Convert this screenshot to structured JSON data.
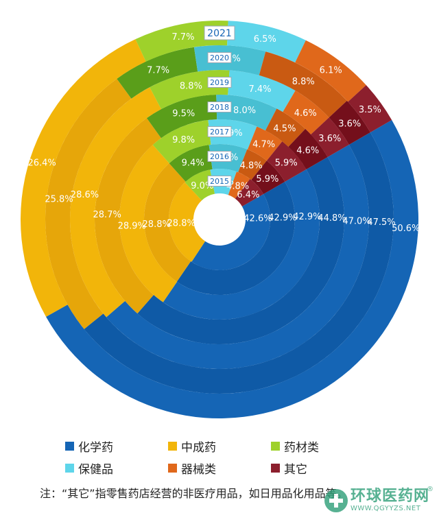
{
  "chart_data": {
    "type": "pie",
    "subtype": "concentric-rings",
    "start_angle_deg": -30,
    "years": [
      "2015",
      "2016",
      "2017",
      "2018",
      "2019",
      "2020",
      "2021"
    ],
    "categories": [
      "化学药",
      "中成药",
      "药材类",
      "保健品",
      "器械类",
      "其它"
    ],
    "colors": [
      "#1565b5",
      "#f2b50a",
      "#9ed12b",
      "#5ed5ea",
      "#e0681b",
      "#8c1f2d"
    ],
    "colors_alt": [
      "#0f5aa6",
      "#e6a60a",
      "#5a9e1a",
      "#48bfd2",
      "#c95a12",
      "#740f1b"
    ],
    "values": {
      "2015": [
        42.6,
        28.8,
        9.0,
        8.4,
        4.8,
        6.4
      ],
      "2016": [
        42.9,
        28.8,
        9.4,
        8.2,
        4.8,
        5.9
      ],
      "2017": [
        42.9,
        28.9,
        9.8,
        7.9,
        4.7,
        5.9
      ],
      "2018": [
        44.8,
        28.7,
        9.5,
        8.0,
        4.5,
        4.6
      ],
      "2019": [
        47.0,
        28.6,
        8.8,
        7.4,
        4.6,
        3.6
      ],
      "2020": [
        47.5,
        25.8,
        7.7,
        6.6,
        8.8,
        3.6
      ],
      "2021": [
        50.6,
        26.4,
        7.7,
        6.5,
        6.1,
        3.5
      ]
    },
    "labels": {
      "2015": [
        "42.6%",
        "28.8%",
        "9.0%",
        "8.4%",
        "4.8%",
        "6.4%"
      ],
      "2016": [
        "42.9%",
        "28.8%",
        "9.4%",
        "8.2%",
        "4.8%",
        "5.9%"
      ],
      "2017": [
        "42.9%",
        "28.9%",
        "9.8%",
        "7.9%",
        "4.7%",
        "5.9%"
      ],
      "2018": [
        "44.8%",
        "28.7%",
        "9.5%",
        "8.0%",
        "4.5%",
        "4.6%"
      ],
      "2019": [
        "47.0%",
        "28.6%",
        "8.8%",
        "7.4%",
        "4.6%",
        "3.6%"
      ],
      "2020": [
        "47.5%",
        "25.8%",
        "7.7%",
        "6.6%",
        "8.8%",
        "3.6%"
      ],
      "2021": [
        "50.6%",
        "26.4%",
        "7.7%",
        "6.5%",
        "6.1%",
        "3.5%"
      ]
    },
    "legend": [
      "化学药",
      "中成药",
      "药材类",
      "保健品",
      "器械类",
      "其它"
    ],
    "legend_placement": "bottom"
  },
  "note": "注：“其它”指零售药店经营的非医疗用品，如日用品化用品等。",
  "watermark": {
    "name": "环球医药网",
    "url": "WWW.QGYYZS.NET",
    "reg": "®"
  }
}
